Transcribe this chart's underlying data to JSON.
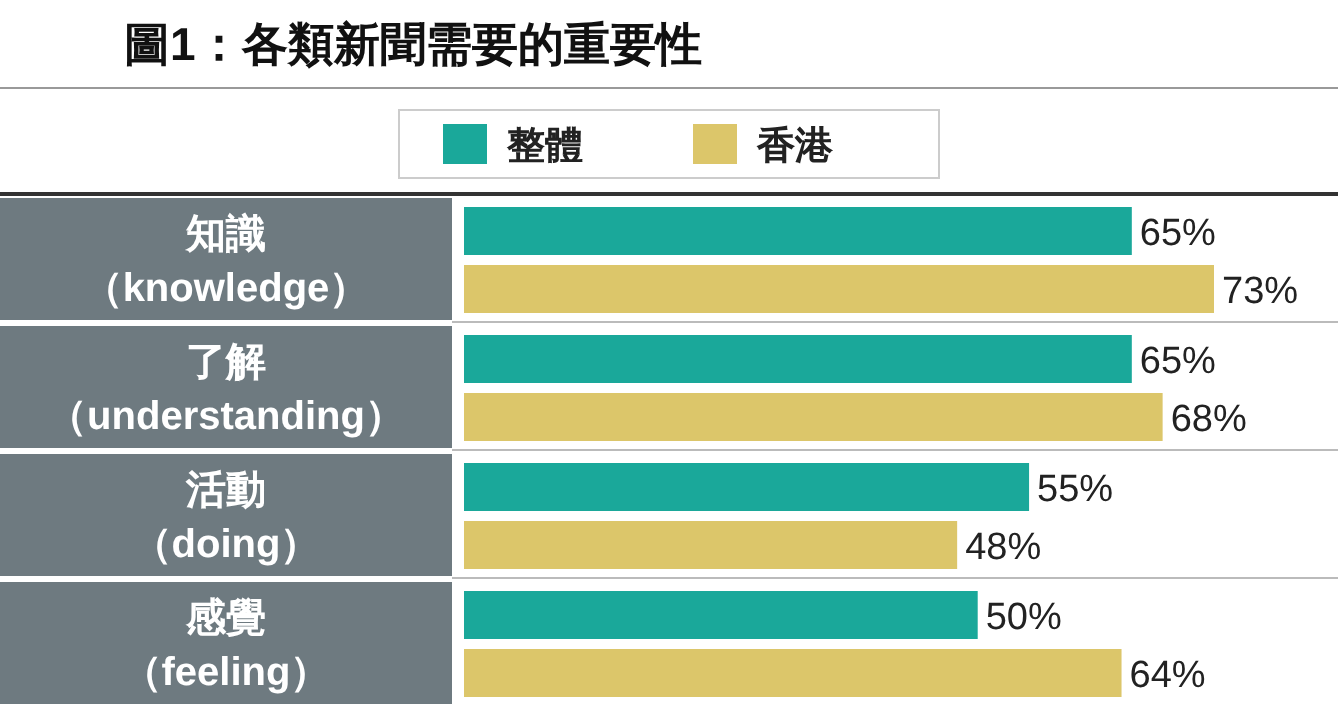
{
  "chart_data": {
    "type": "bar",
    "orientation": "horizontal",
    "title": "圖1：各類新聞需要的重要性",
    "categories": [
      "知識（knowledge）",
      "了解（understanding）",
      "活動（doing）",
      "感覺（feeling）"
    ],
    "series": [
      {
        "name": "整體",
        "color": "#1aa89a",
        "values": [
          65,
          65,
          55,
          50
        ],
        "value_labels": [
          "65%",
          "65%",
          "55%",
          "50%"
        ]
      },
      {
        "name": "香港",
        "color": "#dcc66a",
        "values": [
          73,
          68,
          48,
          64
        ],
        "value_labels": [
          "73%",
          "68%",
          "48%",
          "64%"
        ]
      }
    ],
    "legend": "top"
  }
}
